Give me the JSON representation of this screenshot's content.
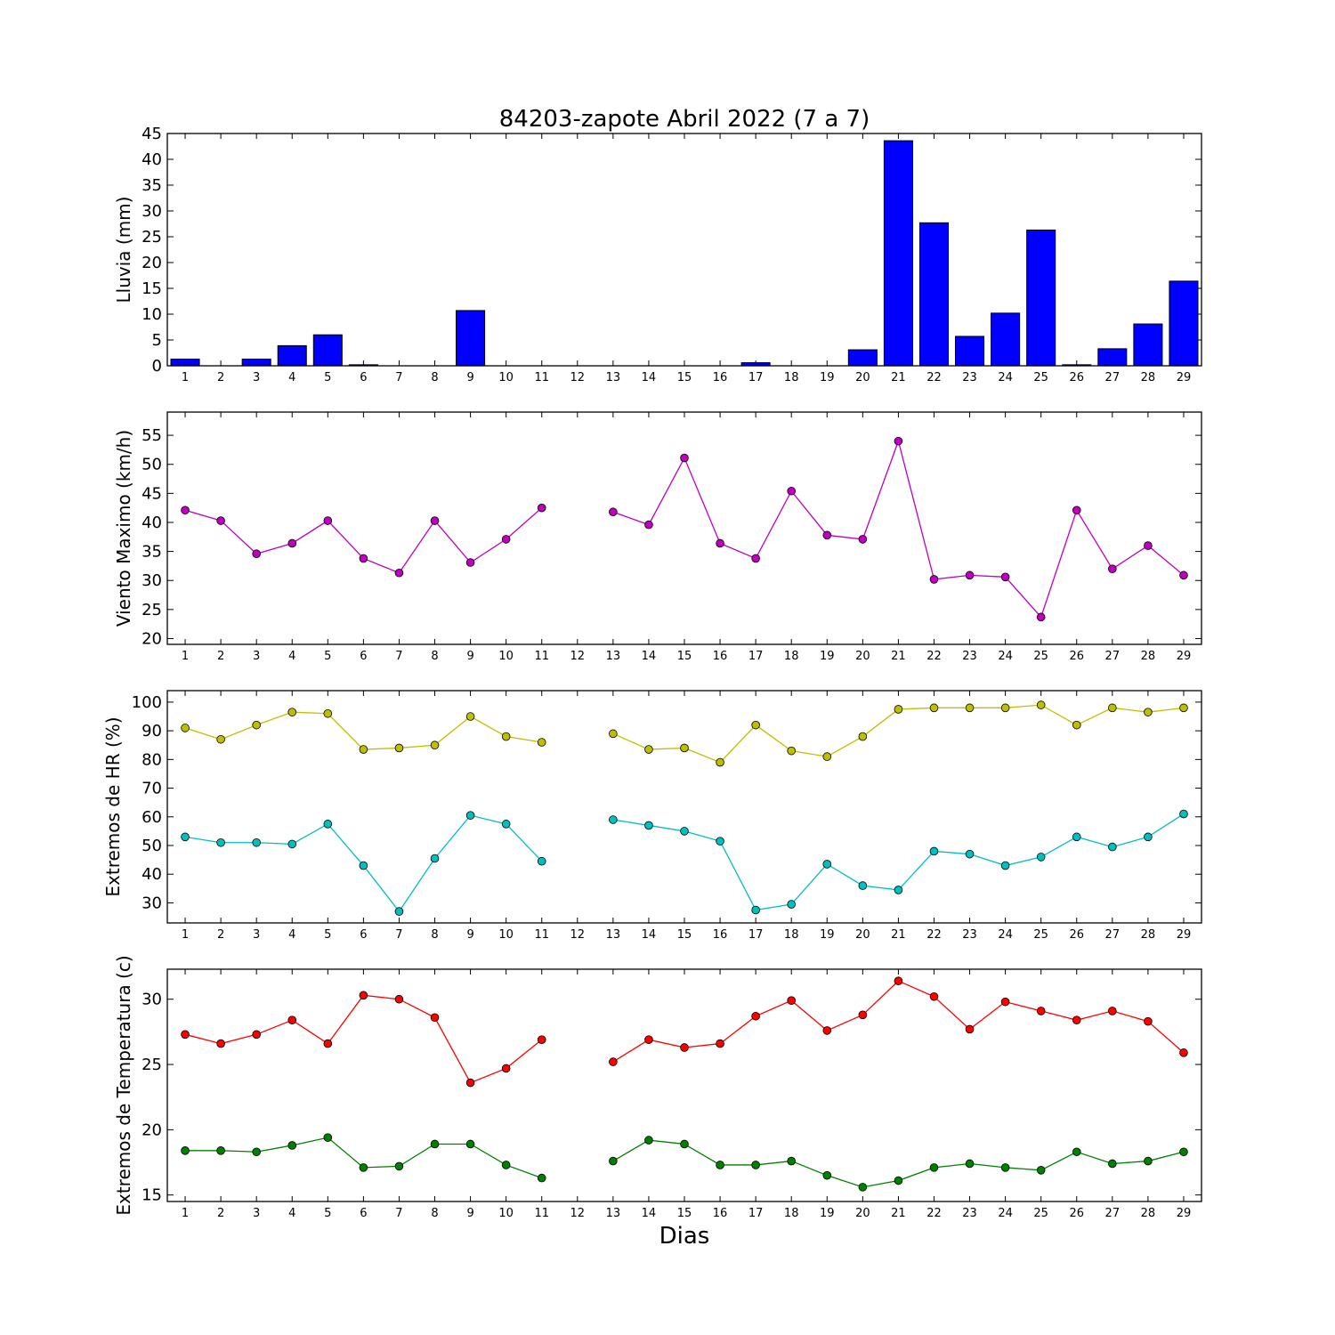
{
  "figure_title": "84203-zapote Abril 2022  (7 a 7)",
  "xlabel": "Dias",
  "chart_data": [
    {
      "type": "bar",
      "title": "84203-zapote Abril 2022  (7 a 7)",
      "ylabel": "Lluvia (mm)",
      "ylim": [
        0,
        45
      ],
      "yticks": [
        0,
        5,
        10,
        15,
        20,
        25,
        30,
        35,
        40,
        45
      ],
      "x": [
        1,
        2,
        3,
        4,
        5,
        6,
        7,
        8,
        9,
        10,
        11,
        12,
        13,
        14,
        15,
        16,
        17,
        18,
        19,
        20,
        21,
        22,
        23,
        24,
        25,
        26,
        27,
        28,
        29
      ],
      "series": [
        {
          "color": "#0000ff",
          "values": [
            1.3,
            0,
            1.3,
            3.9,
            6.0,
            0.2,
            0,
            0,
            10.7,
            0,
            0,
            0,
            0,
            0,
            0,
            0,
            0.6,
            0,
            0,
            3.1,
            43.6,
            27.7,
            5.7,
            10.2,
            26.3,
            0.2,
            3.3,
            8.1,
            16.4
          ]
        }
      ]
    },
    {
      "type": "line",
      "ylabel": "Viento Maximo (km/h)",
      "ylim": [
        19,
        59
      ],
      "yticks": [
        20,
        25,
        30,
        35,
        40,
        45,
        50,
        55
      ],
      "x": [
        1,
        2,
        3,
        4,
        5,
        6,
        7,
        8,
        9,
        10,
        11,
        12,
        13,
        14,
        15,
        16,
        17,
        18,
        19,
        20,
        21,
        22,
        23,
        24,
        25,
        26,
        27,
        28,
        29
      ],
      "series": [
        {
          "color": "#bf00bf",
          "values": [
            42.1,
            40.3,
            34.6,
            36.4,
            40.3,
            33.8,
            31.3,
            40.3,
            33.1,
            37.1,
            42.5,
            null,
            41.8,
            39.6,
            51.1,
            36.4,
            33.8,
            45.4,
            37.8,
            37.1,
            54.0,
            30.2,
            30.9,
            30.6,
            23.7,
            42.1,
            32.0,
            36.0,
            30.9
          ]
        }
      ]
    },
    {
      "type": "line",
      "ylabel": "Extremos de HR (%)",
      "ylim": [
        23,
        104
      ],
      "yticks": [
        30,
        40,
        50,
        60,
        70,
        80,
        90,
        100
      ],
      "x": [
        1,
        2,
        3,
        4,
        5,
        6,
        7,
        8,
        9,
        10,
        11,
        12,
        13,
        14,
        15,
        16,
        17,
        18,
        19,
        20,
        21,
        22,
        23,
        24,
        25,
        26,
        27,
        28,
        29
      ],
      "series": [
        {
          "color": "#bfbf00",
          "values": [
            91,
            87,
            92,
            96.5,
            96,
            83.5,
            84,
            85,
            95,
            88,
            86,
            null,
            89,
            83.5,
            84,
            79,
            92,
            83,
            81,
            88,
            97.5,
            98,
            98,
            98,
            99,
            92,
            98,
            96.5,
            98
          ]
        },
        {
          "color": "#00bfbf",
          "values": [
            53,
            51,
            51,
            50.5,
            57.5,
            43,
            27,
            45.5,
            60.5,
            57.5,
            44.5,
            null,
            59,
            57,
            55,
            51.5,
            27.5,
            29.5,
            43.5,
            36,
            34.5,
            48,
            47,
            43,
            46,
            53,
            49.5,
            53,
            61
          ]
        }
      ]
    },
    {
      "type": "line",
      "ylabel": "Extremos de Temperatura (c)",
      "ylim": [
        14.5,
        32.3
      ],
      "yticks": [
        15,
        20,
        25,
        30
      ],
      "x": [
        1,
        2,
        3,
        4,
        5,
        6,
        7,
        8,
        9,
        10,
        11,
        12,
        13,
        14,
        15,
        16,
        17,
        18,
        19,
        20,
        21,
        22,
        23,
        24,
        25,
        26,
        27,
        28,
        29
      ],
      "series": [
        {
          "color": "#ff0000",
          "values": [
            27.3,
            26.6,
            27.3,
            28.4,
            26.6,
            30.3,
            30.0,
            28.6,
            23.6,
            24.7,
            26.9,
            null,
            25.2,
            26.9,
            26.3,
            26.6,
            28.7,
            29.9,
            27.6,
            28.8,
            31.4,
            30.2,
            27.7,
            29.8,
            29.1,
            28.4,
            29.1,
            28.3,
            25.9
          ]
        },
        {
          "color": "#008000",
          "values": [
            18.4,
            18.4,
            18.3,
            18.8,
            19.4,
            17.1,
            17.2,
            18.9,
            18.9,
            17.3,
            16.3,
            null,
            17.6,
            19.2,
            18.9,
            17.3,
            17.3,
            17.6,
            16.5,
            15.6,
            16.1,
            17.1,
            17.4,
            17.1,
            16.9,
            18.3,
            17.4,
            17.6,
            18.3
          ]
        }
      ]
    }
  ]
}
